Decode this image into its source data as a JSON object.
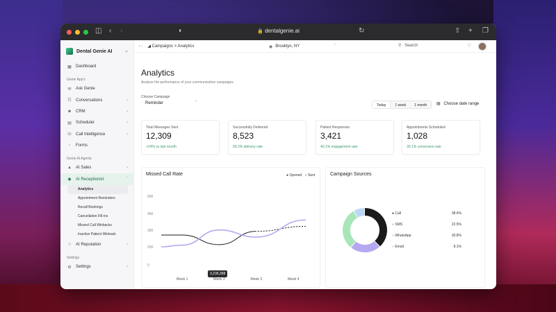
{
  "browser": {
    "url": "dentalgenie.ai",
    "colors": {
      "close": "#ff5f57",
      "minimize": "#febc2e",
      "maximize": "#28c840"
    }
  },
  "sidebar": {
    "brand": "Dental Genie AI",
    "top_item": {
      "label": "Dashboard",
      "icon": "grid-icon"
    },
    "sections": [
      {
        "title": "Genie App's",
        "items": [
          {
            "label": "Ask Genie",
            "icon": "chat-icon",
            "has_chevron": false
          },
          {
            "label": "Conversations",
            "icon": "messages-icon",
            "has_chevron": true
          },
          {
            "label": "CRM",
            "icon": "users-icon",
            "has_chevron": true
          },
          {
            "label": "Scheduler",
            "icon": "calendar-icon",
            "has_chevron": true
          },
          {
            "label": "Call Intelligence",
            "icon": "phone-icon",
            "has_chevron": true
          },
          {
            "label": "Forms",
            "icon": "document-icon",
            "has_chevron": false
          }
        ]
      },
      {
        "title": "Genie AI Agents",
        "items": [
          {
            "label": "AI Sales",
            "icon": "cart-icon",
            "has_chevron": true
          },
          {
            "label": "AI Receptionist",
            "icon": "headset-icon",
            "has_chevron": true,
            "expanded": true
          }
        ],
        "subitems": [
          "Analytics",
          "Appointment Reminders",
          "Recall Bookings",
          "Cancellation Fill-ins",
          "Missed Call Winbacks",
          "Inactive Patient Winback"
        ],
        "after_items": [
          {
            "label": "AI Reputation",
            "icon": "star-icon",
            "has_chevron": true
          }
        ]
      },
      {
        "title": "Settings",
        "items": [
          {
            "label": "Settings",
            "icon": "gear-icon",
            "has_chevron": true
          }
        ]
      }
    ]
  },
  "topbar": {
    "breadcrumb_parent": "Campaigns",
    "breadcrumb_sep": ">",
    "breadcrumb_current": "Analytics",
    "location": "Brooklyn, NY",
    "search_placeholder": "Search"
  },
  "page": {
    "title": "Analytics",
    "subtitle": "Analyze the performance of your communication campaigns",
    "campaign_label": "Choose Campaign",
    "campaign_value": "Reminder",
    "ranges": [
      "Today",
      "1 week",
      "1 month"
    ],
    "date_range_label": "Choose date range"
  },
  "stats": [
    {
      "title": "Total Messages Sent",
      "value": "12,309",
      "delta": "+24% vs last month"
    },
    {
      "title": "Successfully Delivered",
      "value": "8,523",
      "delta": "69.2% delivery rate"
    },
    {
      "title": "Patient Responses",
      "value": "3,421",
      "delta": "40.1% engagement rate"
    },
    {
      "title": "Appointments Scheduled",
      "value": "1,028",
      "delta": "30.1% conversion rate"
    }
  ],
  "missed_call": {
    "title": "Missed Call Rate",
    "legend": [
      "Opened",
      "Sent"
    ],
    "tooltip": "3,236,398"
  },
  "campaign_sources": {
    "title": "Campaign Sources",
    "rows": [
      {
        "label": "Call",
        "pct": "38.6%"
      },
      {
        "label": "SMS",
        "pct": "22.5%"
      },
      {
        "label": "WhatsApp",
        "pct": "30.8%"
      },
      {
        "label": "Email",
        "pct": "8.1%"
      }
    ]
  },
  "chart_data": [
    {
      "type": "line",
      "title": "Missed Call Rate",
      "categories": [
        "Week 1",
        "Week 2",
        "Week 3",
        "Week 4"
      ],
      "yticks": [
        0,
        200,
        300,
        400,
        500
      ],
      "series": [
        {
          "name": "Opened",
          "color": "#1a1a1a",
          "values": [
            270,
            213,
            292,
            322
          ]
        },
        {
          "name": "Sent",
          "color": "#b5a8f0",
          "values": [
            210,
            300,
            258,
            360
          ]
        }
      ]
    },
    {
      "type": "pie",
      "title": "Campaign Sources",
      "categories": [
        "Call",
        "SMS",
        "WhatsApp",
        "Email"
      ],
      "values": [
        38.6,
        22.5,
        30.8,
        8.1
      ],
      "colors": [
        "#1a1a1a",
        "#b5a8f0",
        "#a8e6b8",
        "#bcd6f5"
      ]
    }
  ]
}
